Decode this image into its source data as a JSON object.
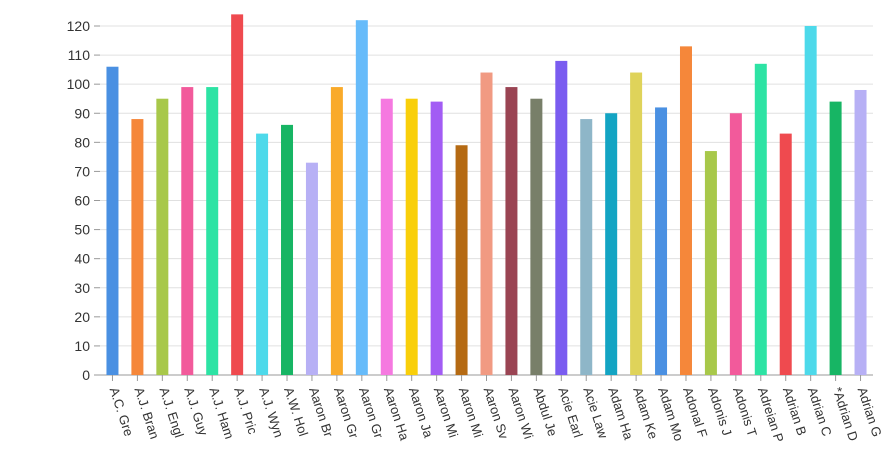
{
  "chart_data": {
    "type": "bar",
    "categories": [
      "A.C. Gre",
      "A.J. Bran",
      "A.J. Engl",
      "A.J. Guy",
      "A.J. Ham",
      "A.J. Pric",
      "A.J. Wyn",
      "A.W. Hol",
      "Aaron Br",
      "Aaron Gr",
      "Aaron Gr",
      "Aaron Ha",
      "Aaron Ja",
      "Aaron Mi",
      "Aaron Mi",
      "Aaron Sv",
      "Aaron Wi",
      "Abdul Je",
      "Acie Earl",
      "Acie Law",
      "Adam Ha",
      "Adam Ke",
      "Adam Mo",
      "Adonal F",
      "Adonis J",
      "Adonis T",
      "Adreian P",
      "Adrian B",
      "Adrian C",
      "*Adrian D",
      "Adrian G"
    ],
    "values": [
      106,
      88,
      95,
      99,
      99,
      124,
      83,
      86,
      73,
      99,
      122,
      95,
      95,
      94,
      79,
      104,
      99,
      95,
      108,
      88,
      90,
      104,
      92,
      113,
      77,
      90,
      107,
      83,
      120,
      94,
      98
    ],
    "colors": [
      "#4a90e2",
      "#f5873a",
      "#a8c84a",
      "#f25a9b",
      "#2de3a4",
      "#ef4a4f",
      "#4dd9ea",
      "#17b564",
      "#b7b0f5",
      "#f9aa2a",
      "#66bbfa",
      "#f579e0",
      "#f9cf0a",
      "#a25cf4",
      "#b56a13",
      "#f19a82",
      "#9a4453",
      "#787f69",
      "#7a5cf0",
      "#8eb6c8",
      "#13a4c3",
      "#dfd35a",
      "#4a90e2",
      "#f5873a",
      "#a8c84a",
      "#f25a9b",
      "#2de3a4",
      "#ef4a4f",
      "#4dd9ea",
      "#17b564",
      "#b7b0f5"
    ],
    "yticks": [
      0,
      10,
      20,
      30,
      40,
      50,
      60,
      70,
      80,
      90,
      100,
      110,
      120
    ],
    "ylim": [
      0,
      120
    ],
    "grid": true,
    "xlabel": "",
    "ylabel": "",
    "title": ""
  }
}
